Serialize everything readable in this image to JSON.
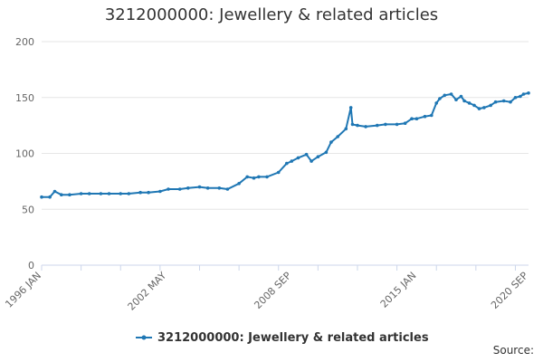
{
  "chart_data": {
    "type": "line",
    "title": "3212000000: Jewellery & related articles",
    "xlabel": "",
    "ylabel": "",
    "ylim": [
      0,
      200
    ],
    "yticks": [
      "0",
      "50",
      "100",
      "150",
      "200"
    ],
    "x_tick_labels": [
      "1996 JAN",
      "2002 MAY",
      "2008 SEP",
      "2015 JAN",
      "2020 SEP"
    ],
    "grid": true,
    "legend_position": "bottom",
    "series": [
      {
        "name": "3212000000: Jewellery & related articles",
        "color": "#1f77b4",
        "x": [
          "1996-01",
          "1996-06",
          "1996-09",
          "1997-01",
          "1997-06",
          "1998-01",
          "1998-06",
          "1999-01",
          "1999-06",
          "2000-01",
          "2000-06",
          "2001-01",
          "2001-06",
          "2002-01",
          "2002-06",
          "2003-01",
          "2003-06",
          "2004-01",
          "2004-06",
          "2005-01",
          "2005-06",
          "2006-01",
          "2006-06",
          "2006-10",
          "2007-01",
          "2007-06",
          "2008-01",
          "2008-06",
          "2008-09",
          "2009-01",
          "2009-06",
          "2009-09",
          "2010-01",
          "2010-06",
          "2010-09",
          "2011-01",
          "2011-06",
          "2011-09",
          "2011-10",
          "2012-01",
          "2012-06",
          "2013-01",
          "2013-06",
          "2014-01",
          "2014-06",
          "2014-10",
          "2015-01",
          "2015-06",
          "2015-10",
          "2016-01",
          "2016-03",
          "2016-06",
          "2016-10",
          "2017-01",
          "2017-04",
          "2017-06",
          "2017-09",
          "2017-12",
          "2018-03",
          "2018-06",
          "2018-10",
          "2019-01",
          "2019-06",
          "2019-10",
          "2020-01",
          "2020-04",
          "2020-06",
          "2020-09"
        ],
        "values": [
          61,
          61,
          66,
          63,
          63,
          64,
          64,
          64,
          64,
          64,
          64,
          65,
          65,
          66,
          68,
          68,
          69,
          70,
          69,
          69,
          68,
          73,
          79,
          78,
          79,
          79,
          83,
          91,
          93,
          96,
          99,
          93,
          97,
          101,
          110,
          115,
          122,
          141,
          126,
          125,
          124,
          125,
          126,
          126,
          127,
          131,
          131,
          133,
          134,
          145,
          149,
          152,
          153,
          148,
          151,
          147,
          145,
          143,
          140,
          141,
          143,
          146,
          147,
          146,
          150,
          151,
          153,
          154
        ]
      }
    ]
  },
  "legend": {
    "label": "3212000000: Jewellery & related articles"
  },
  "source": {
    "label": "Source:"
  }
}
